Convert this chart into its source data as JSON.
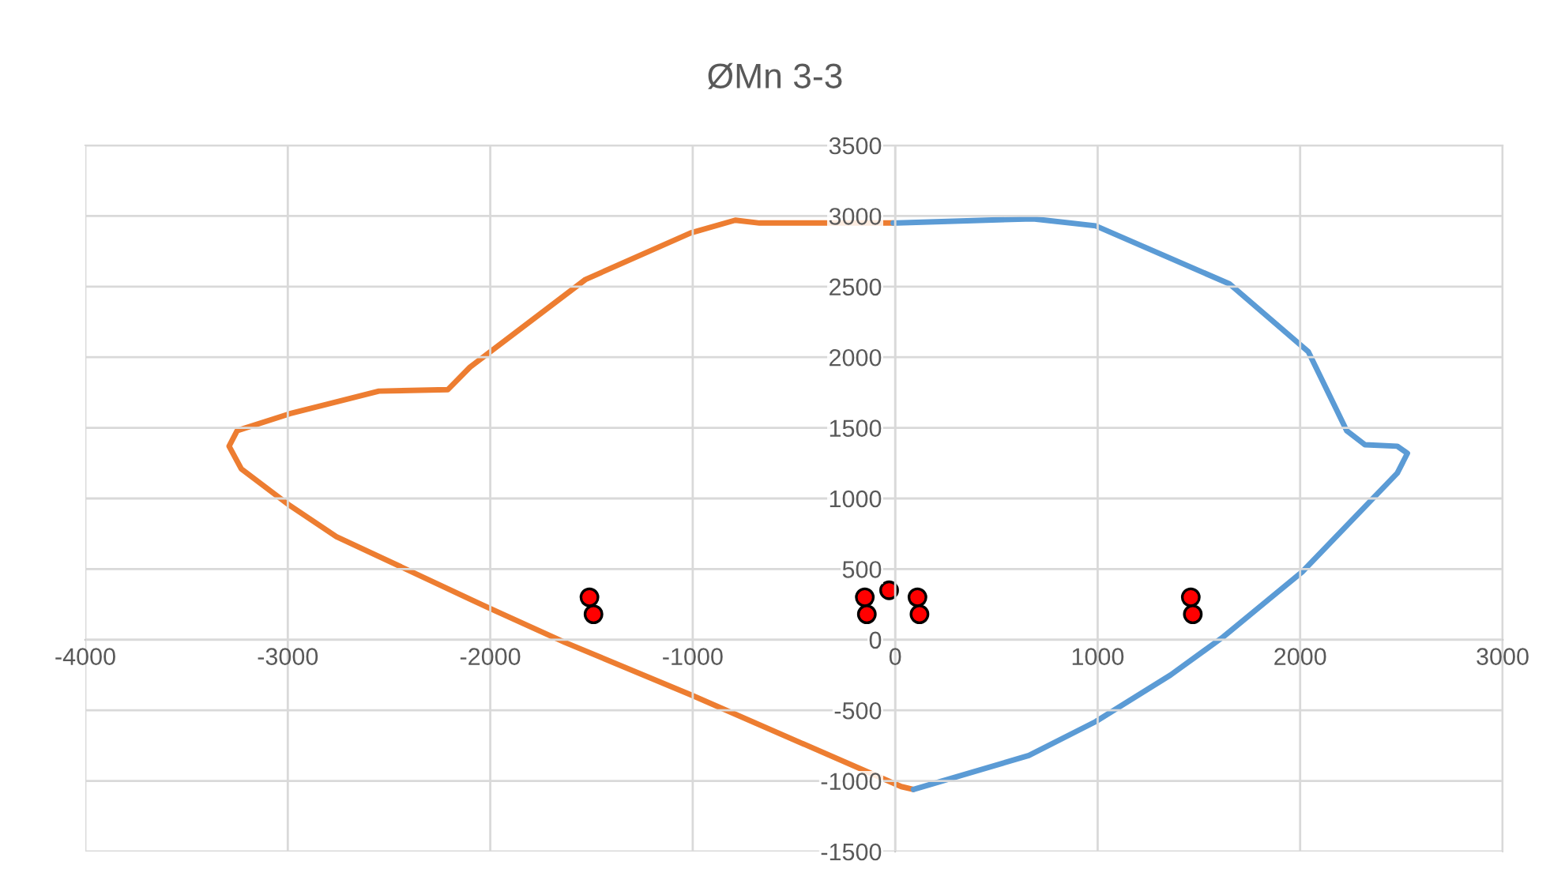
{
  "chart_data": {
    "type": "line",
    "title": "ØMn 3-3",
    "xlim": [
      -4000,
      3000
    ],
    "xticks": [
      -4000,
      -3000,
      -2000,
      -1000,
      0,
      1000,
      2000,
      3000
    ],
    "ylim": [
      -1500,
      3500
    ],
    "yticks": [
      -1500,
      -1000,
      -500,
      0,
      500,
      1000,
      1500,
      2000,
      2500,
      3000,
      3500
    ],
    "grid": true,
    "series": [
      {
        "color": "#ed7d31",
        "marker": "none",
        "x": [
          -10,
          -50,
          -670,
          -790,
          -1010,
          -1530,
          -2100,
          -2210,
          -2550,
          -2990,
          -3250,
          -3290,
          -3230,
          -2990,
          -2760,
          -2000,
          -1630,
          -1010,
          30,
          90
        ],
        "values": [
          2950,
          2950,
          2950,
          2970,
          2880,
          2550,
          1930,
          1770,
          1760,
          1600,
          1480,
          1370,
          1210,
          950,
          730,
          220,
          -20,
          -390,
          -1040,
          -1060
        ]
      },
      {
        "color": "#5b9bd5",
        "marker": "none",
        "x": [
          90,
          660,
          990,
          1360,
          1620,
          2010,
          2480,
          2530,
          2480,
          2320,
          2230,
          2040,
          1650,
          990,
          680,
          10,
          -10
        ],
        "values": [
          -1060,
          -820,
          -580,
          -250,
          20,
          480,
          1180,
          1320,
          1370,
          1380,
          1480,
          2040,
          2520,
          2930,
          2980,
          2950,
          2950
        ]
      },
      {
        "type": "scatter",
        "color": "#ff0000",
        "marker": "circle",
        "x": [
          -1510,
          -1490,
          -150,
          -140,
          -30,
          110,
          120,
          1460,
          1470
        ],
        "values": [
          300,
          180,
          300,
          180,
          350,
          300,
          180,
          300,
          180
        ]
      }
    ]
  }
}
